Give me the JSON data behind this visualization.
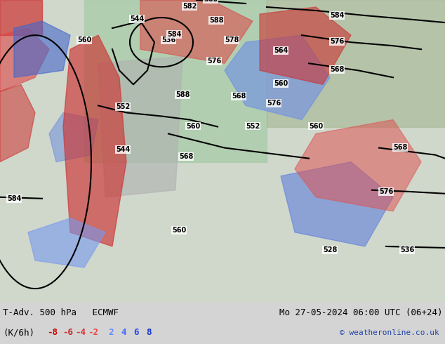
{
  "title_left": "T-Adv. 500 hPa   ECMWF",
  "title_right": "Mo 27-05-2024 06:00 UTC (06+24)",
  "subtitle_left": "(K/6h)",
  "copyright": "© weatheronline.co.uk",
  "legend_values": [
    "-8",
    "-6",
    "-4",
    "-2",
    "2",
    "4",
    "6",
    "8"
  ],
  "legend_colors_neg": [
    "#cc0000",
    "#cc0000",
    "#cc0000",
    "#cc0000"
  ],
  "legend_colors_pos": [
    "#9999ff",
    "#6666ff",
    "#3333ff",
    "#0000cc"
  ],
  "bg_color": "#e8e8e8",
  "map_bg": "#e0e0e0",
  "figsize": [
    6.34,
    4.9
  ],
  "dpi": 100,
  "bottom_bar_color": "#d8d8d8",
  "contour_color": "#000000",
  "warm_adv_colors": [
    "#ff9999",
    "#ff6666",
    "#ff3333",
    "#cc0000",
    "#990000"
  ],
  "cold_adv_colors": [
    "#99ccff",
    "#6699ff",
    "#3366ff",
    "#0033cc",
    "#000099"
  ],
  "green_color": "#99cc66",
  "gray_color": "#999999"
}
